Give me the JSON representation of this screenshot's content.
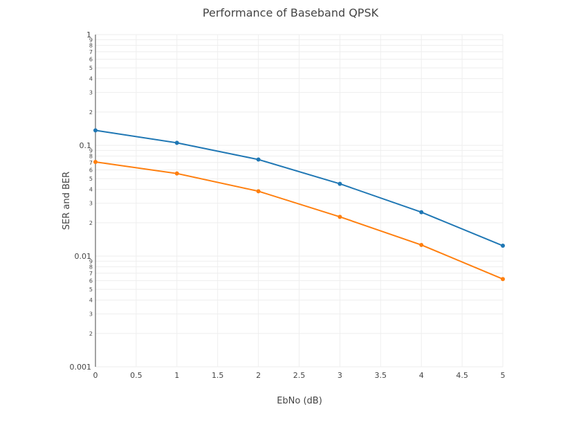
{
  "chart_data": {
    "type": "line",
    "title": "Performance of Baseband QPSK",
    "xlabel": "EbNo (dB)",
    "ylabel": "SER and BER",
    "x": [
      0,
      1,
      2,
      3,
      4,
      5
    ],
    "xlim": [
      0,
      5
    ],
    "ylim": [
      0.001,
      1
    ],
    "yscale": "log",
    "grid": true,
    "x_tick_labels": [
      "0",
      "0.5",
      "1",
      "1.5",
      "2",
      "2.5",
      "3",
      "3.5",
      "4",
      "4.5",
      "5"
    ],
    "y_major_tick_labels": [
      "0.001",
      "0.01",
      "0.1",
      "1"
    ],
    "y_minor_tick_labels": [
      "2",
      "3",
      "4",
      "5",
      "6",
      "7",
      "8",
      "9"
    ],
    "series": [
      {
        "color": "#1f77b4",
        "values": [
          0.1365,
          0.1053,
          0.0745,
          0.0449,
          0.0249,
          0.0124
        ]
      },
      {
        "color": "#ff7f0e",
        "values": [
          0.0708,
          0.0557,
          0.0385,
          0.0226,
          0.0126,
          0.0062
        ]
      }
    ]
  }
}
